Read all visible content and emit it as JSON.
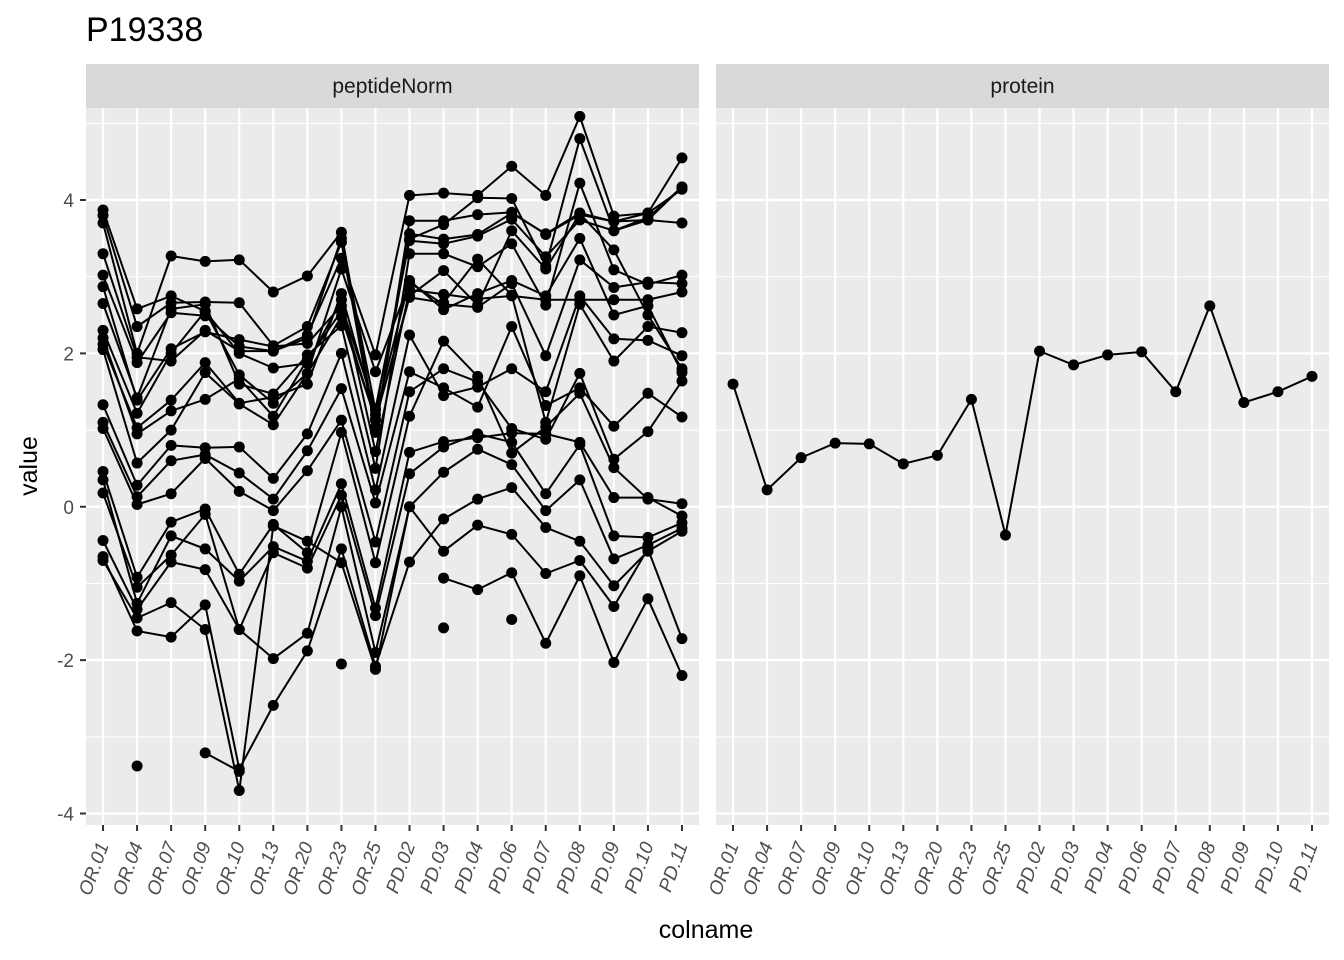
{
  "chart_data": {
    "type": "line",
    "title": "P19338",
    "xlabel": "colname",
    "ylabel": "value",
    "ylim": [
      -4.15,
      5.2
    ],
    "yticks": [
      -4,
      -2,
      0,
      2,
      4
    ],
    "grid": true,
    "categories": [
      "OR.01",
      "OR.04",
      "OR.07",
      "OR.09",
      "OR.10",
      "OR.13",
      "OR.20",
      "OR.23",
      "OR.25",
      "PD.02",
      "PD.03",
      "PD.04",
      "PD.06",
      "PD.07",
      "PD.08",
      "PD.09",
      "PD.10",
      "PD.11"
    ],
    "panels": [
      {
        "name": "peptideNorm",
        "series": [
          {
            "values": [
              3.87,
              2.58,
              2.75,
              2.55,
              2.0,
              1.81,
              1.87,
              2.7,
              0.72,
              2.83,
              2.77,
              2.71,
              2.75,
              2.7,
              2.7,
              2.7,
              2.7,
              2.8
            ]
          },
          {
            "values": [
              3.8,
              2.35,
              2.66,
              2.67,
              2.66,
              2.1,
              2.35,
              3.45,
              0.97,
              3.73,
              3.73,
              3.81,
              3.84,
              3.55,
              3.81,
              3.72,
              3.74,
              4.17
            ]
          },
          {
            "values": [
              3.7,
              2.0,
              3.27,
              3.2,
              3.22,
              2.8,
              3.01,
              3.58,
              1.04,
              3.56,
              3.49,
              3.55,
              3.83,
              3.56,
              3.83,
              3.72,
              3.83,
              4.14
            ]
          },
          {
            "values": [
              3.3,
              1.95,
              1.9,
              2.3,
              2.03,
              2.03,
              2.2,
              3.5,
              1.26,
              3.47,
              3.43,
              3.53,
              3.75,
              3.26,
              3.74,
              3.6,
              3.74,
              3.7
            ]
          },
          {
            "values": [
              3.02,
              1.88,
              2.53,
              2.49,
              2.09,
              2.03,
              2.24,
              3.24,
              1.98,
              4.06,
              4.09,
              4.06,
              4.44,
              4.06,
              5.09,
              3.79,
              3.83,
              4.55
            ]
          },
          {
            "values": [
              2.87,
              1.39,
              2.06,
              2.28,
              2.18,
              2.09,
              2.13,
              2.62,
              1.28,
              3.49,
              3.68,
              4.03,
              4.02,
              3.14,
              4.8,
              3.6,
              3.77,
              4.17
            ]
          },
          {
            "values": [
              2.65,
              1.42,
              2.58,
              2.64,
              1.6,
              1.47,
              1.98,
              2.36,
              0.5,
              3.3,
              3.3,
              3.13,
              3.43,
              2.63,
              4.22,
              3.09,
              2.9,
              3.02
            ]
          },
          {
            "values": [
              2.3,
              1.22,
              2.0,
              2.55,
              1.72,
              1.35,
              1.74,
              3.1,
              1.76,
              2.92,
              2.64,
              2.6,
              2.91,
              1.97,
              3.22,
              2.86,
              2.93,
              2.91
            ]
          },
          {
            "values": [
              2.2,
              0.95,
              1.25,
              1.4,
              1.67,
              1.18,
              1.92,
              2.55,
              1.13,
              2.75,
              3.08,
              2.63,
              3.6,
              3.1,
              3.82,
              3.35,
              2.5,
              1.8
            ]
          },
          {
            "values": [
              2.12,
              1.03,
              1.39,
              1.88,
              1.35,
              1.43,
              1.6,
              2.78,
              1.2,
              2.95,
              2.57,
              2.78,
              2.95,
              2.75,
              3.5,
              2.5,
              2.62,
              1.75
            ]
          },
          {
            "values": [
              2.05,
              0.57,
              1.0,
              1.75,
              1.34,
              1.07,
              1.74,
              2.48,
              1.14,
              2.73,
              2.66,
              3.23,
              2.76,
              1.1,
              2.64,
              1.9,
              2.35,
              2.27
            ]
          },
          {
            "values": [
              1.33,
              0.28,
              0.8,
              0.77,
              0.78,
              0.37,
              0.95,
              2.0,
              0.22,
              2.24,
              1.45,
              1.56,
              1.8,
              1.5,
              2.75,
              2.19,
              2.17,
              1.97
            ]
          },
          {
            "values": [
              1.1,
              0.13,
              0.6,
              0.68,
              0.44,
              0.1,
              0.73,
              1.54,
              0.05,
              1.76,
              1.55,
              1.3,
              2.35,
              1.32,
              1.55,
              1.05,
              1.48,
              1.17
            ]
          },
          {
            "values": [
              1.02,
              0.03,
              0.17,
              0.63,
              0.2,
              -0.05,
              0.47,
              1.13,
              -0.46,
              1.5,
              1.8,
              1.63,
              1.02,
              0.88,
              1.74,
              0.62,
              0.98,
              1.64
            ]
          },
          {
            "values": [
              0.46,
              -0.92,
              -0.2,
              -0.03,
              -0.88,
              -0.23,
              -0.6,
              0.97,
              -0.73,
              1.18,
              2.16,
              1.7,
              0.7,
              1.04,
              1.48,
              0.51,
              0.1,
              0.04
            ]
          },
          {
            "values": [
              0.35,
              -1.26,
              -0.38,
              -0.55,
              -0.97,
              -0.52,
              -0.71,
              0.3,
              -1.32,
              0.71,
              0.85,
              0.9,
              0.96,
              0.95,
              0.84,
              0.12,
              0.12,
              -0.12
            ]
          },
          {
            "values": [
              0.18,
              -1.05,
              -0.63,
              -0.1,
              -1.6,
              -0.6,
              -0.8,
              0.15,
              -1.42,
              0.43,
              0.78,
              0.95,
              0.84,
              0.17,
              0.81,
              -0.38,
              -0.4,
              -0.21
            ]
          },
          {
            "values": [
              -0.44,
              -1.34,
              -0.72,
              -0.82,
              -1.6,
              -1.98,
              -1.65,
              0.0,
              -1.9,
              0.0,
              0.45,
              0.75,
              0.55,
              -0.05,
              0.35,
              -0.68,
              -0.5,
              -0.28
            ]
          },
          {
            "values": [
              -0.65,
              -1.62,
              -1.7,
              -1.28,
              -3.42,
              -2.59,
              -1.88,
              -0.55,
              -2.08,
              -0.72,
              -0.16,
              0.1,
              0.25,
              -0.27,
              -0.45,
              -1.03,
              -0.58,
              -0.32
            ]
          },
          {
            "values": [
              -0.7,
              -1.45,
              -1.25,
              -1.6,
              -3.7,
              -0.25,
              -0.45,
              -0.73,
              -2.12,
              0.0,
              -0.58,
              -0.24,
              -0.36,
              -0.87,
              -0.7,
              -1.3,
              -0.55,
              -1.72
            ]
          },
          {
            "values": [
              null,
              -3.38,
              null,
              -3.21,
              -3.45,
              null,
              null,
              -2.05,
              null,
              null,
              -0.93,
              -1.08,
              -0.86,
              -1.78,
              -0.9,
              -2.03,
              -1.2,
              -2.2
            ]
          },
          {
            "values": [
              null,
              null,
              null,
              null,
              null,
              null,
              null,
              null,
              null,
              null,
              -1.58,
              null,
              -1.47,
              null,
              null,
              null,
              null,
              null
            ]
          }
        ]
      },
      {
        "name": "protein",
        "series": [
          {
            "values": [
              1.6,
              0.22,
              0.64,
              0.83,
              0.82,
              0.56,
              0.67,
              1.4,
              -0.37,
              2.03,
              1.85,
              1.98,
              2.02,
              1.5,
              2.62,
              1.36,
              1.5,
              1.7
            ]
          }
        ]
      }
    ]
  }
}
